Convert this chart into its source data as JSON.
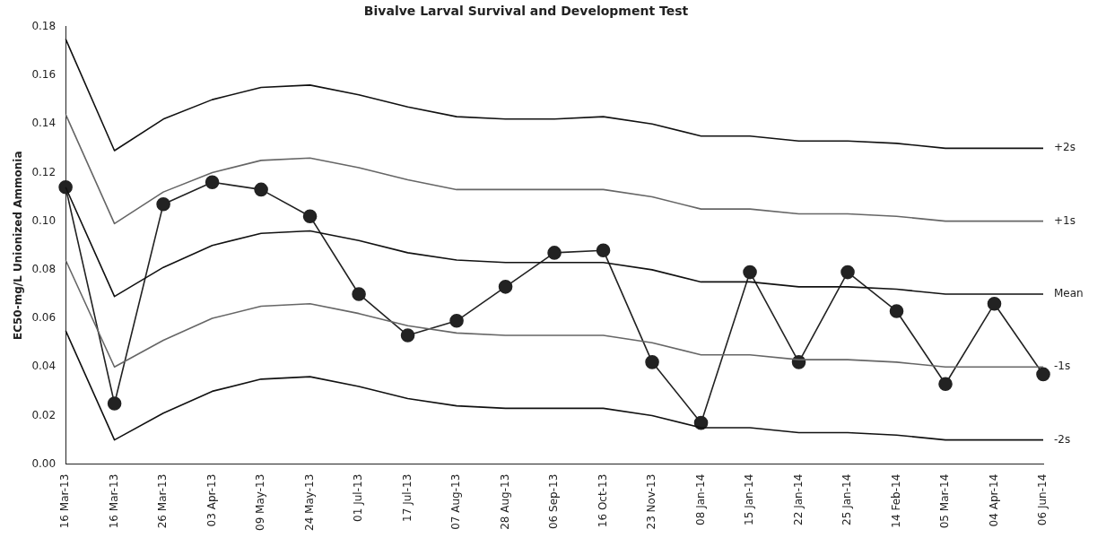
{
  "chart_data": {
    "type": "line",
    "title": "Bivalve Larval Survival and Development Test",
    "ylabel": "EC50-mg/L Unionized Ammonia",
    "categories": [
      "16 Mar-13",
      "16 Mar-13",
      "26 Mar-13",
      "03 Apr-13",
      "09 May-13",
      "24 May-13",
      "01 Jul-13",
      "17 Jul-13",
      "07 Aug-13",
      "28 Aug-13",
      "06 Sep-13",
      "16 Oct-13",
      "23 Nov-13",
      "08 Jan-14",
      "15 Jan-14",
      "22 Jan-14",
      "25 Jan-14",
      "14 Feb-14",
      "05 Mar-14",
      "04 Apr-14",
      "06 Jun-14"
    ],
    "series": [
      {
        "name": "+2s",
        "color": "#111111",
        "marker": "none",
        "values": [
          0.175,
          0.129,
          0.142,
          0.15,
          0.155,
          0.156,
          0.152,
          0.147,
          0.143,
          0.142,
          0.142,
          0.143,
          0.14,
          0.135,
          0.135,
          0.133,
          0.133,
          0.132,
          0.13,
          0.13,
          0.13
        ]
      },
      {
        "name": "+1s",
        "color": "#666666",
        "marker": "none",
        "values": [
          0.144,
          0.099,
          0.112,
          0.12,
          0.125,
          0.126,
          0.122,
          0.117,
          0.113,
          0.113,
          0.113,
          0.113,
          0.11,
          0.105,
          0.105,
          0.103,
          0.103,
          0.102,
          0.1,
          0.1,
          0.1
        ]
      },
      {
        "name": "Mean",
        "color": "#111111",
        "marker": "none",
        "values": [
          0.114,
          0.069,
          0.081,
          0.09,
          0.095,
          0.096,
          0.092,
          0.087,
          0.084,
          0.083,
          0.083,
          0.083,
          0.08,
          0.075,
          0.075,
          0.073,
          0.073,
          0.072,
          0.07,
          0.07,
          0.07
        ]
      },
      {
        "name": "-1s",
        "color": "#666666",
        "marker": "none",
        "values": [
          0.084,
          0.04,
          0.051,
          0.06,
          0.065,
          0.066,
          0.062,
          0.057,
          0.054,
          0.053,
          0.053,
          0.053,
          0.05,
          0.045,
          0.045,
          0.043,
          0.043,
          0.042,
          0.04,
          0.04,
          0.04
        ]
      },
      {
        "name": "-2s",
        "color": "#111111",
        "marker": "none",
        "values": [
          0.055,
          0.01,
          0.021,
          0.03,
          0.035,
          0.036,
          0.032,
          0.027,
          0.024,
          0.023,
          0.023,
          0.023,
          0.02,
          0.015,
          0.015,
          0.013,
          0.013,
          0.012,
          0.01,
          0.01,
          0.01
        ]
      },
      {
        "color": "#222222",
        "marker": "circle",
        "values": [
          0.114,
          0.025,
          0.107,
          0.116,
          0.113,
          0.102,
          0.07,
          0.053,
          0.059,
          0.073,
          0.087,
          0.088,
          0.042,
          0.017,
          0.079,
          0.042,
          0.079,
          0.063,
          0.033,
          0.066,
          0.037
        ]
      }
    ],
    "ylim": [
      0,
      0.18
    ],
    "yticks": [
      {
        "value": 0,
        "label": "0.00"
      },
      {
        "value": 0.02,
        "label": "0.02"
      },
      {
        "value": 0.04,
        "label": "0.04"
      },
      {
        "value": 0.06,
        "label": "0.06"
      },
      {
        "value": 0.08,
        "label": "0.08"
      },
      {
        "value": 0.1,
        "label": "0.10"
      },
      {
        "value": 0.12,
        "label": "0.12"
      },
      {
        "value": 0.14,
        "label": "0.14"
      },
      {
        "value": 0.16,
        "label": "0.16"
      },
      {
        "value": 0.18,
        "label": "0.18"
      }
    ],
    "grid": false,
    "legend": false
  }
}
